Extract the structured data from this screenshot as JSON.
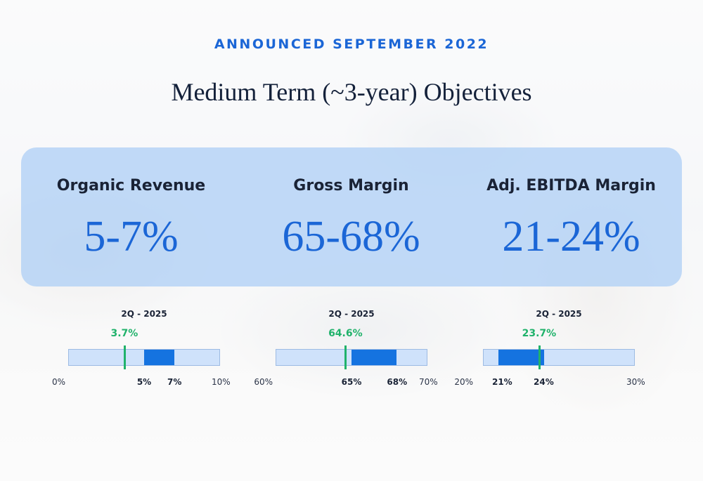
{
  "eyebrow": "ANNOUNCED SEPTEMBER 2022",
  "title": "Medium Term (~3-year) Objectives",
  "metrics": [
    {
      "label": "Organic Revenue",
      "value": "5-7%"
    },
    {
      "label": "Gross Margin",
      "value": "65-68%"
    },
    {
      "label": "Adj. EBITDA Margin",
      "value": "21-24%"
    }
  ],
  "gauges": [
    {
      "period": "2Q - 2025",
      "current_label": "3.7%",
      "current": 3.7,
      "axis_min": 0,
      "axis_max": 10,
      "range_low": 5,
      "range_high": 7,
      "min_label": "0%",
      "max_label": "10%",
      "low_label": "5%",
      "high_label": "7%"
    },
    {
      "period": "2Q - 2025",
      "current_label": "64.6%",
      "current": 64.6,
      "axis_min": 60,
      "axis_max": 70,
      "range_low": 65,
      "range_high": 68,
      "min_label": "60%",
      "max_label": "70%",
      "low_label": "65%",
      "high_label": "68%"
    },
    {
      "period": "2Q - 2025",
      "current_label": "23.7%",
      "current": 23.7,
      "axis_min": 20,
      "axis_max": 30,
      "range_low": 21,
      "range_high": 24,
      "min_label": "20%",
      "max_label": "30%",
      "low_label": "21%",
      "high_label": "24%"
    }
  ],
  "colors": {
    "accent_blue": "#1b66d6",
    "range_blue": "#1573e0",
    "track_blue": "#cfe2fb",
    "current_green": "#20b26b"
  }
}
